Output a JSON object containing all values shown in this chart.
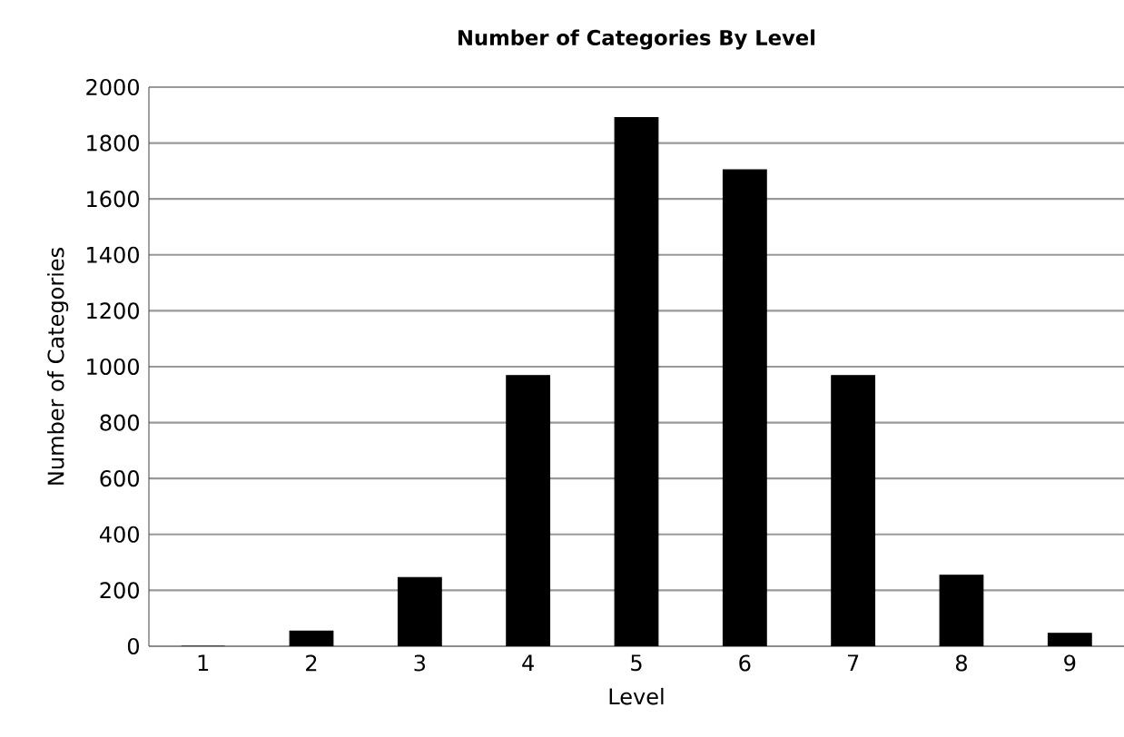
{
  "chart_data": {
    "type": "bar",
    "title": "Number of Categories By Level",
    "xlabel": "Level",
    "ylabel": "Number of Categories",
    "categories": [
      "1",
      "2",
      "3",
      "4",
      "5",
      "6",
      "7",
      "8",
      "9"
    ],
    "values": [
      0,
      54,
      246,
      968,
      1891,
      1704,
      968,
      254,
      46
    ],
    "color": "#000000",
    "ylim": [
      0,
      2000
    ],
    "yticks": [
      0,
      200,
      400,
      600,
      800,
      1000,
      1200,
      1400,
      1600,
      1800,
      2000
    ],
    "grid": "y"
  }
}
